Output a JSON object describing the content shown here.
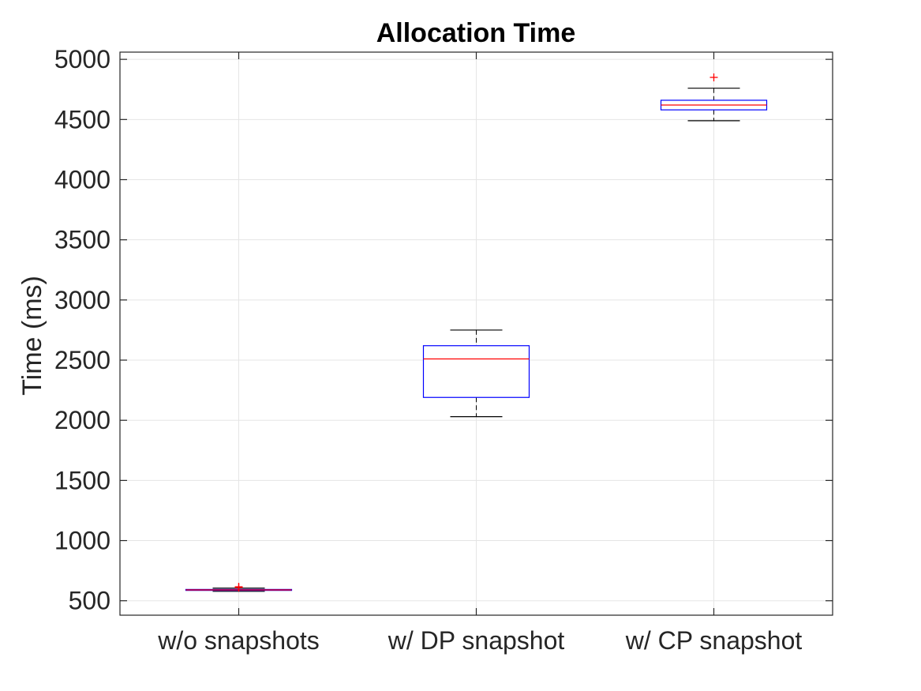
{
  "chart_data": {
    "type": "boxplot",
    "title": "Allocation Time",
    "xlabel": "",
    "ylabel": "Time (ms)",
    "ylim": [
      380,
      5060
    ],
    "yticks": [
      500,
      1000,
      1500,
      2000,
      2500,
      3000,
      3500,
      4000,
      4500,
      5000
    ],
    "grid": true,
    "categories": [
      "w/o snapshots",
      "w/ DP snapshot",
      "w/ CP snapshot"
    ],
    "boxes": [
      {
        "min": 578,
        "q1": 586,
        "median": 590,
        "q3": 594,
        "max": 605,
        "outliers": [
          610,
          616
        ]
      },
      {
        "min": 2030,
        "q1": 2190,
        "median": 2510,
        "q3": 2620,
        "max": 2750,
        "outliers": []
      },
      {
        "min": 4490,
        "q1": 4580,
        "median": 4620,
        "q3": 4660,
        "max": 4760,
        "outliers": [
          4850
        ]
      }
    ],
    "colors": {
      "box": "#0000ff",
      "median": "#ff0000",
      "whisker": "#000000",
      "outlier": "#ff0000",
      "grid": "#e5e5e5",
      "axis": "#262626"
    }
  }
}
